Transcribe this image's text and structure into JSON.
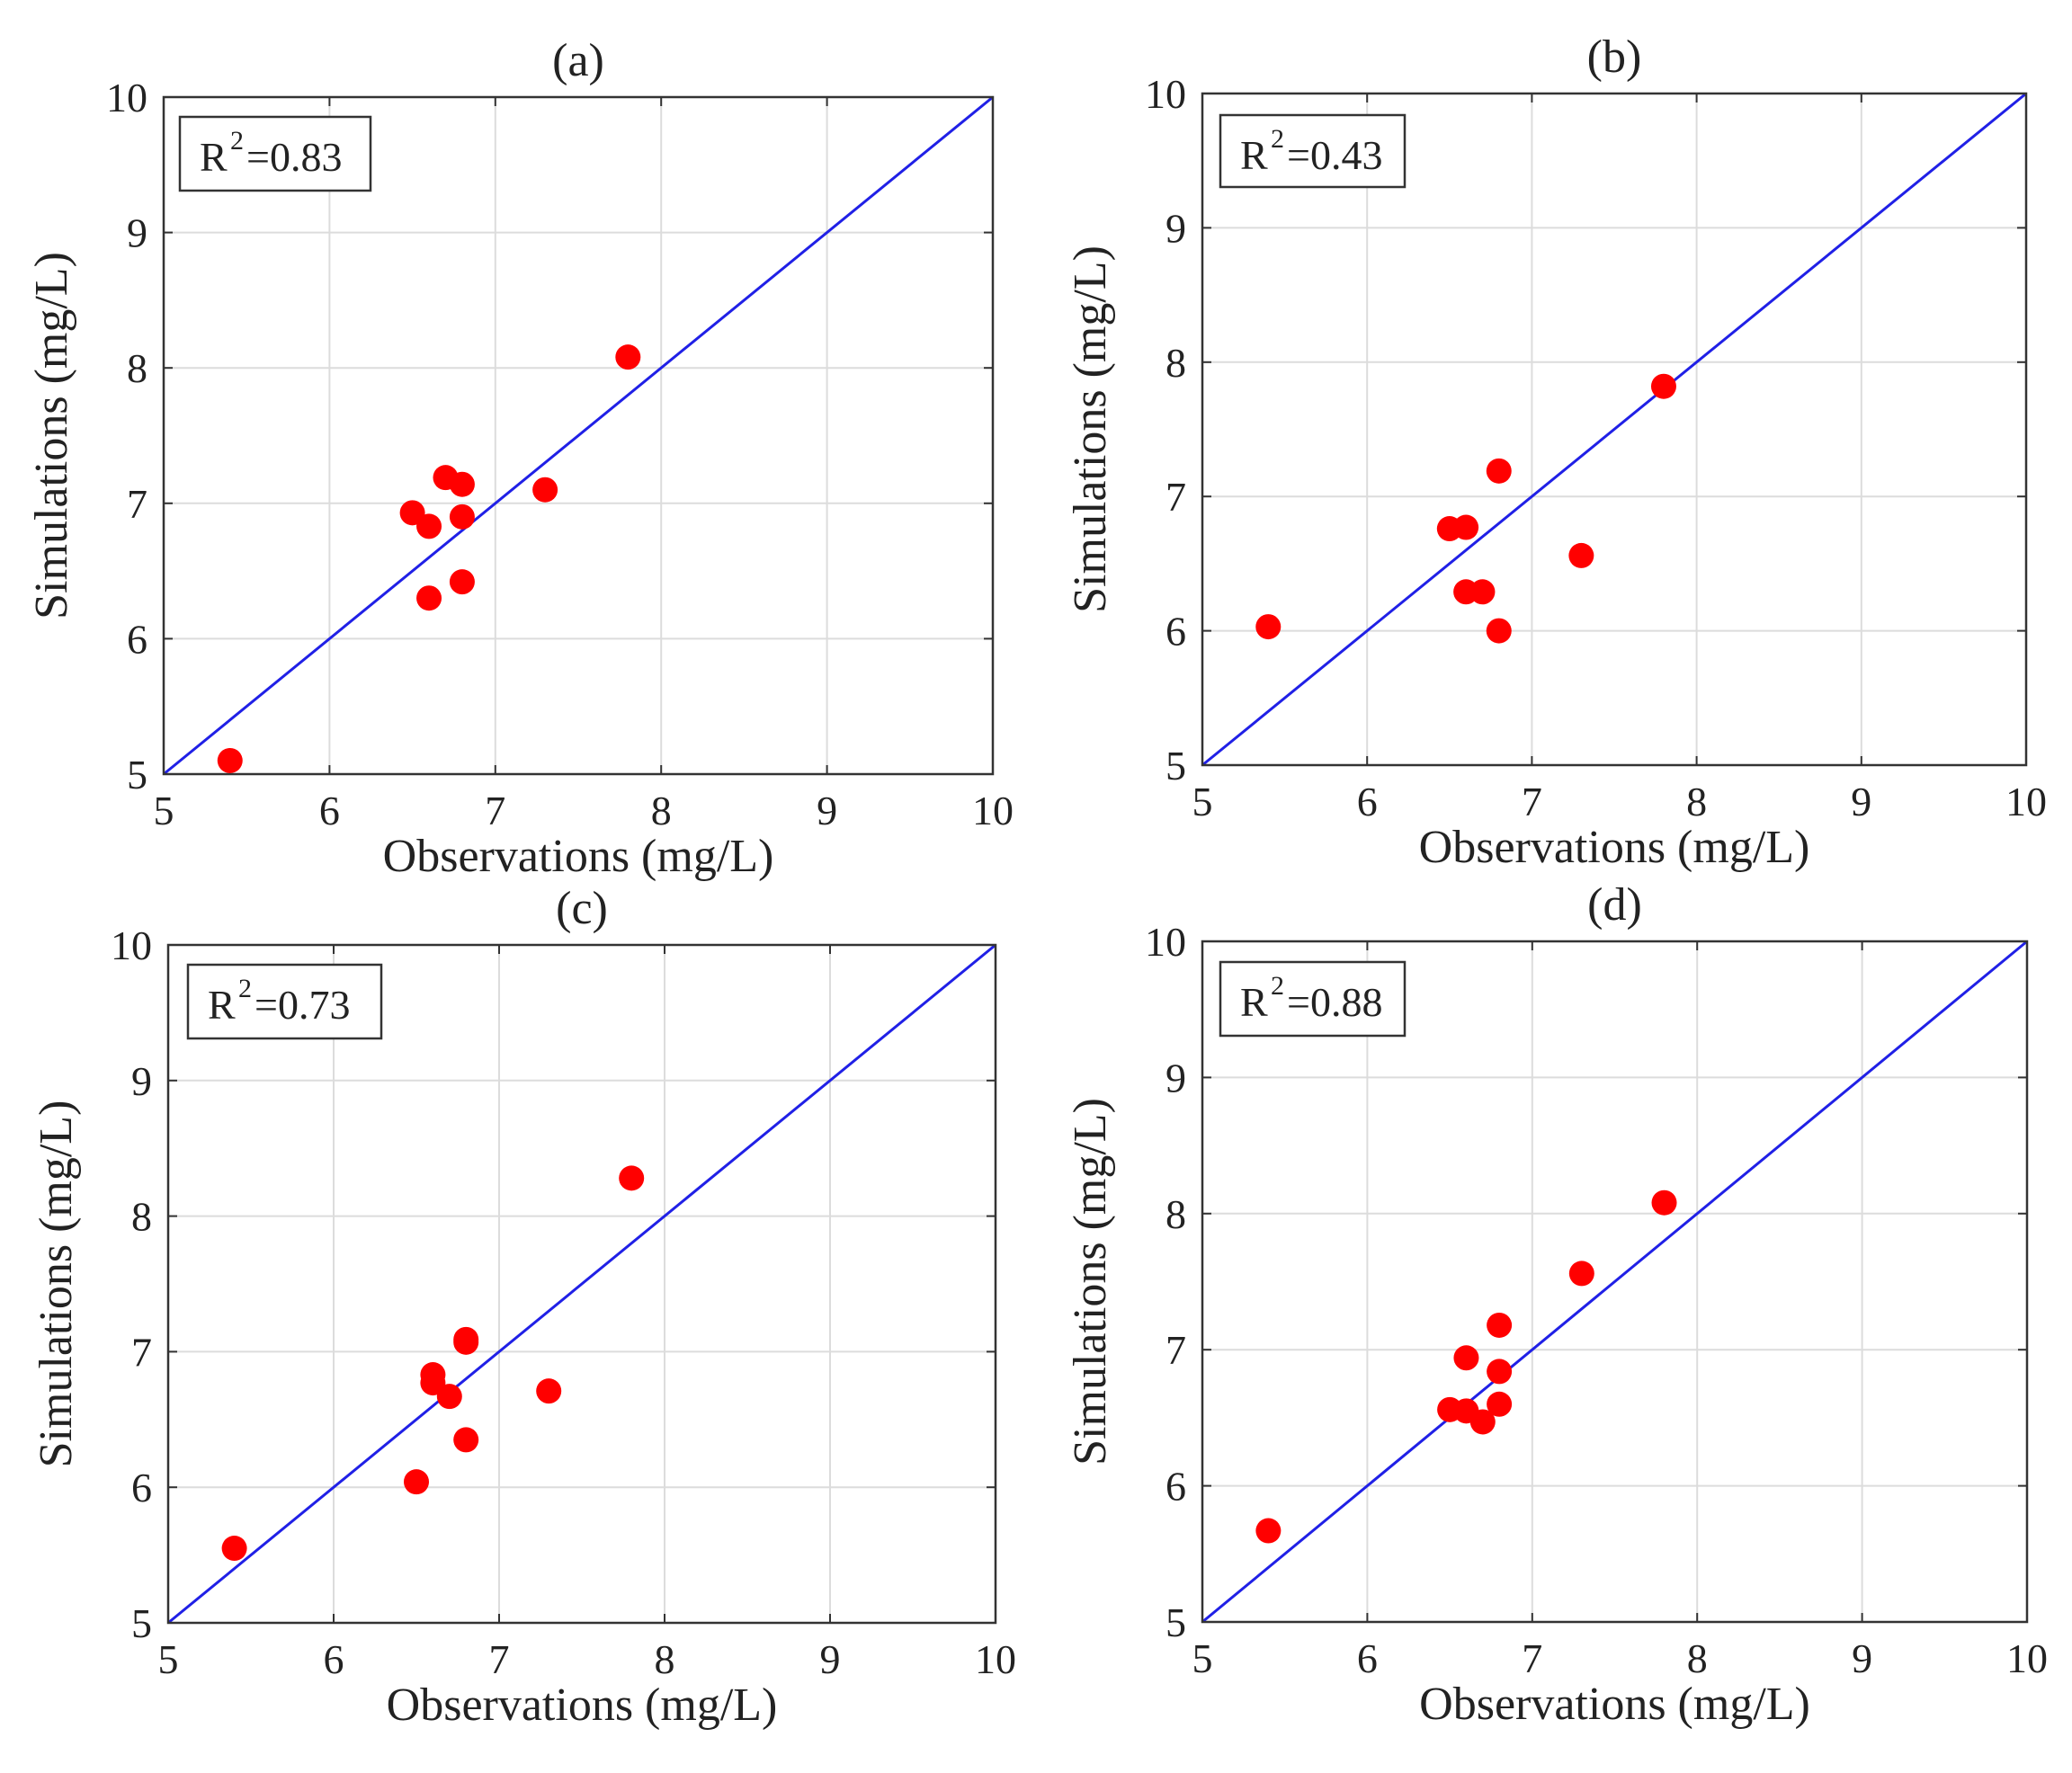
{
  "colors": {
    "identity_line": "#2020e6",
    "points": "#ff0000",
    "grid": "#dcdcdc",
    "axes": "#333333"
  },
  "chart_data": [
    {
      "type": "scatter",
      "title": "(a)",
      "xlabel": "Observations (mg/L)",
      "ylabel": "Simulations (mg/L)",
      "xlim": [
        5,
        10
      ],
      "ylim": [
        5,
        10
      ],
      "xticks": [
        "5",
        "6",
        "7",
        "8",
        "9",
        "10"
      ],
      "yticks": [
        "5",
        "6",
        "7",
        "8",
        "9",
        "10"
      ],
      "grid": true,
      "r2_text": "R",
      "r2_sup": "2",
      "r2_value": "=0.83",
      "reference_line": "y = x",
      "points": [
        {
          "x": 5.4,
          "y": 5.1
        },
        {
          "x": 6.5,
          "y": 6.93
        },
        {
          "x": 6.6,
          "y": 6.83
        },
        {
          "x": 6.6,
          "y": 6.3
        },
        {
          "x": 6.7,
          "y": 7.19
        },
        {
          "x": 6.8,
          "y": 7.14
        },
        {
          "x": 6.8,
          "y": 6.9
        },
        {
          "x": 6.8,
          "y": 6.42
        },
        {
          "x": 7.3,
          "y": 7.1
        },
        {
          "x": 7.8,
          "y": 8.08
        }
      ]
    },
    {
      "type": "scatter",
      "title": "(b)",
      "xlabel": "Observations (mg/L)",
      "ylabel": "Simulations (mg/L)",
      "xlim": [
        5,
        10
      ],
      "ylim": [
        5,
        10
      ],
      "xticks": [
        "5",
        "6",
        "7",
        "8",
        "9",
        "10"
      ],
      "yticks": [
        "5",
        "6",
        "7",
        "8",
        "9",
        "10"
      ],
      "grid": true,
      "r2_text": "R",
      "r2_sup": "2",
      "r2_value": "=0.43",
      "reference_line": "y = x",
      "points": [
        {
          "x": 5.4,
          "y": 6.03
        },
        {
          "x": 6.5,
          "y": 6.76
        },
        {
          "x": 6.6,
          "y": 6.77
        },
        {
          "x": 6.6,
          "y": 6.29
        },
        {
          "x": 6.7,
          "y": 6.29
        },
        {
          "x": 6.8,
          "y": 7.19
        },
        {
          "x": 6.8,
          "y": 6.0
        },
        {
          "x": 7.3,
          "y": 6.56
        },
        {
          "x": 7.8,
          "y": 7.82
        }
      ]
    },
    {
      "type": "scatter",
      "title": "(c)",
      "xlabel": "Observations (mg/L)",
      "ylabel": "Simulations (mg/L)",
      "xlim": [
        5,
        10
      ],
      "ylim": [
        5,
        10
      ],
      "xticks": [
        "5",
        "6",
        "7",
        "8",
        "9",
        "10"
      ],
      "yticks": [
        "5",
        "6",
        "7",
        "8",
        "9",
        "10"
      ],
      "grid": true,
      "r2_text": "R",
      "r2_sup": "2",
      "r2_value": "=0.73",
      "reference_line": "y = x",
      "points": [
        {
          "x": 5.4,
          "y": 5.55
        },
        {
          "x": 6.5,
          "y": 6.04
        },
        {
          "x": 6.6,
          "y": 6.83
        },
        {
          "x": 6.6,
          "y": 6.77
        },
        {
          "x": 6.7,
          "y": 6.67
        },
        {
          "x": 6.8,
          "y": 7.09
        },
        {
          "x": 6.8,
          "y": 7.07
        },
        {
          "x": 6.8,
          "y": 6.35
        },
        {
          "x": 7.3,
          "y": 6.71
        },
        {
          "x": 7.8,
          "y": 8.28
        }
      ]
    },
    {
      "type": "scatter",
      "title": "(d)",
      "xlabel": "Observations (mg/L)",
      "ylabel": "Simulations (mg/L)",
      "xlim": [
        5,
        10
      ],
      "ylim": [
        5,
        10
      ],
      "xticks": [
        "5",
        "6",
        "7",
        "8",
        "9",
        "10"
      ],
      "yticks": [
        "5",
        "6",
        "7",
        "8",
        "9",
        "10"
      ],
      "grid": true,
      "r2_text": "R",
      "r2_sup": "2",
      "r2_value": "=0.88",
      "reference_line": "y = x",
      "points": [
        {
          "x": 5.4,
          "y": 5.67
        },
        {
          "x": 6.5,
          "y": 6.56
        },
        {
          "x": 6.6,
          "y": 6.94
        },
        {
          "x": 6.6,
          "y": 6.55
        },
        {
          "x": 6.7,
          "y": 6.47
        },
        {
          "x": 6.8,
          "y": 7.18
        },
        {
          "x": 6.8,
          "y": 6.84
        },
        {
          "x": 6.8,
          "y": 6.6
        },
        {
          "x": 7.3,
          "y": 7.56
        },
        {
          "x": 7.8,
          "y": 8.08
        }
      ]
    }
  ]
}
